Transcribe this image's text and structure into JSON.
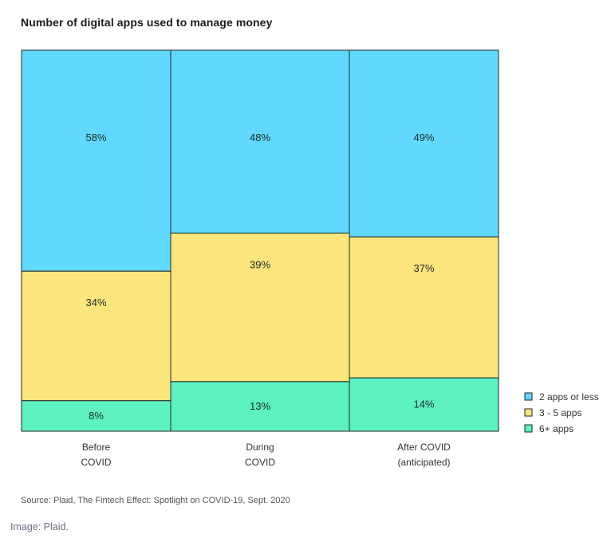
{
  "chart_data": {
    "type": "bar",
    "subtype": "100% stacked variable-width (mosaic)",
    "title": "Number of digital apps used to manage money",
    "categories": [
      [
        "Before",
        "COVID"
      ],
      [
        "During",
        "COVID"
      ],
      [
        "After COVID",
        "(anticipated)"
      ]
    ],
    "series": [
      {
        "name": "2 apps or less",
        "values": [
          58,
          48,
          49
        ],
        "labels": [
          "58%",
          "48%",
          "49%"
        ],
        "color": "#61d8fe"
      },
      {
        "name": "3 - 5 apps",
        "values": [
          34,
          39,
          37
        ],
        "labels": [
          "34%",
          "39%",
          "37%"
        ],
        "color": "#fbe57c"
      },
      {
        "name": "6+ apps",
        "values": [
          8,
          13,
          14
        ],
        "labels": [
          "8%",
          "13%",
          "14%"
        ],
        "color": "#5df0c0"
      }
    ],
    "ylim": [
      0,
      100
    ],
    "grid": false,
    "legend_position": "bottom-right"
  },
  "source": "Source: Plaid, The Fintech Effect: Spotlight on COVID-19, Sept. 2020",
  "credit": "Image: Plaid."
}
